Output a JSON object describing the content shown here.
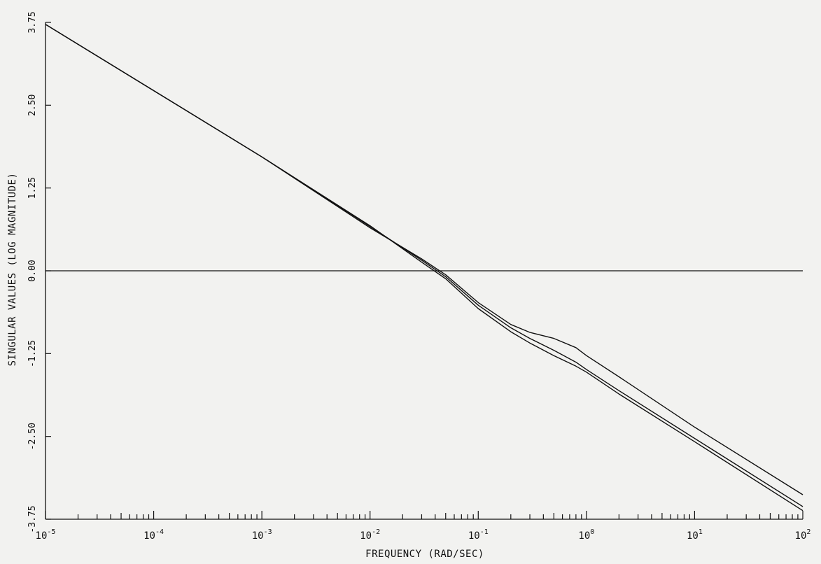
{
  "chart_data": {
    "type": "line",
    "title": "",
    "xlabel": "FREQUENCY (RAD/SEC)",
    "ylabel": "SINGULAR VALUES (LOG MAGNITUDE)",
    "x_scale": "log",
    "xlim": [
      1e-05,
      100
    ],
    "ylim": [
      -3.75,
      3.75
    ],
    "x_ticks": [
      {
        "base": "10",
        "exp": "-5"
      },
      {
        "base": "10",
        "exp": "-4"
      },
      {
        "base": "10",
        "exp": "-3"
      },
      {
        "base": "10",
        "exp": "-2"
      },
      {
        "base": "10",
        "exp": "-1"
      },
      {
        "base": "10",
        "exp": "0"
      },
      {
        "base": "10",
        "exp": "1"
      },
      {
        "base": "10",
        "exp": "2"
      }
    ],
    "y_ticks": [
      "3.75",
      "2.50",
      "1.25",
      "0.00",
      "-1.25",
      "-2.50",
      "-3.75"
    ],
    "grid": false,
    "reference_line_y": 0,
    "series": [
      {
        "x": [
          1e-05,
          0.001,
          0.01,
          0.03,
          0.05,
          0.1,
          0.2,
          0.3,
          0.5,
          0.8,
          1,
          2,
          10,
          100
        ],
        "y": [
          3.72,
          1.72,
          0.65,
          0.18,
          -0.06,
          -0.48,
          -0.81,
          -0.93,
          -1.02,
          -1.16,
          -1.28,
          -1.6,
          -2.36,
          -3.38
        ]
      },
      {
        "x": [
          1e-05,
          0.001,
          0.01,
          0.03,
          0.05,
          0.1,
          0.2,
          0.3,
          0.5,
          0.8,
          1,
          2,
          10,
          100
        ],
        "y": [
          3.72,
          1.72,
          0.67,
          0.16,
          -0.09,
          -0.52,
          -0.86,
          -1.02,
          -1.2,
          -1.38,
          -1.49,
          -1.81,
          -2.53,
          -3.56
        ]
      },
      {
        "x": [
          1e-05,
          0.001,
          0.01,
          0.03,
          0.05,
          0.1,
          0.2,
          0.3,
          0.5,
          0.8,
          1,
          2,
          10,
          100
        ],
        "y": [
          3.72,
          1.72,
          0.68,
          0.13,
          -0.12,
          -0.57,
          -0.92,
          -1.09,
          -1.28,
          -1.44,
          -1.53,
          -1.86,
          -2.58,
          -3.62
        ]
      }
    ]
  }
}
